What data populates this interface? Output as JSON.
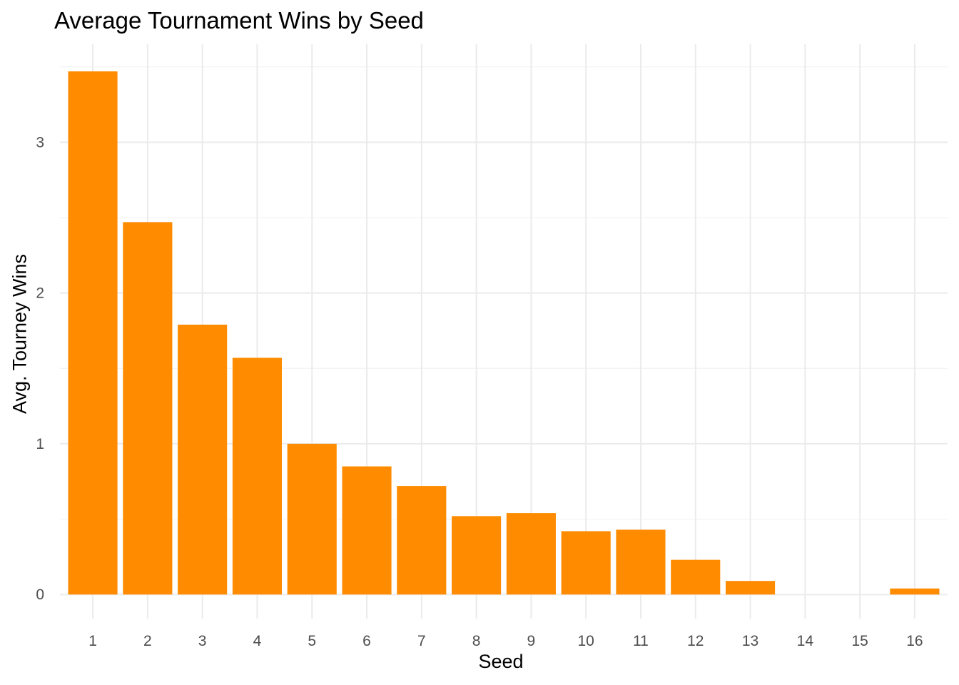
{
  "chart_data": {
    "type": "bar",
    "title": "Average Tournament Wins by Seed",
    "xlabel": "Seed",
    "ylabel": "Avg. Tourney Wins",
    "categories": [
      "1",
      "2",
      "3",
      "4",
      "5",
      "6",
      "7",
      "8",
      "9",
      "10",
      "11",
      "12",
      "13",
      "14",
      "15",
      "16"
    ],
    "values": [
      3.47,
      2.47,
      1.79,
      1.57,
      1.0,
      0.85,
      0.72,
      0.52,
      0.54,
      0.42,
      0.43,
      0.23,
      0.09,
      0.0,
      0.0,
      0.04
    ],
    "ylim": [
      -0.16,
      3.65
    ],
    "yticks": [
      0,
      1,
      2,
      3
    ],
    "ytick_labels": [
      "0",
      "1",
      "2",
      "3"
    ],
    "grid": true,
    "colors": {
      "bar": "#FF8C00",
      "grid_major": "#EBEBEB",
      "grid_minor": "#F3F3F3",
      "tick_text": "#4D4D4D"
    }
  }
}
